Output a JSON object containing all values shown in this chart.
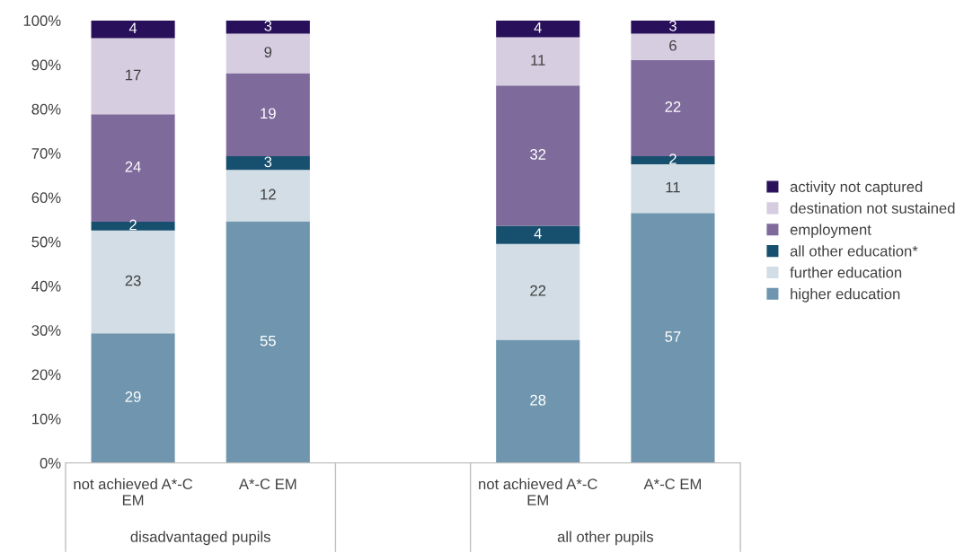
{
  "chart_data": {
    "type": "bar",
    "stacked": true,
    "categories": [
      "not achieved A*-C EM",
      "A*-C EM",
      null,
      "not achieved A*-C EM",
      "A*-C EM"
    ],
    "series": [
      {
        "name": "higher education",
        "color": "#6f96ae",
        "values": [
          29.3,
          54.6,
          null,
          27.8,
          56.5
        ],
        "value_labels": [
          "29",
          "55",
          null,
          "28",
          "57"
        ]
      },
      {
        "name": "further education",
        "color": "#d2dde5",
        "values": [
          23.2,
          11.6,
          null,
          21.7,
          11.0
        ],
        "value_labels": [
          "23",
          "12",
          null,
          "22",
          "11"
        ]
      },
      {
        "name": "all other education*",
        "color": "#17506f",
        "values": [
          2.0,
          3.1,
          null,
          4.1,
          1.8
        ],
        "value_labels": [
          "2",
          "3",
          null,
          "4",
          "2"
        ]
      },
      {
        "name": "employment",
        "color": "#7f6a9c",
        "values": [
          24.3,
          18.8,
          null,
          31.7,
          21.8
        ],
        "value_labels": [
          "24",
          "19",
          null,
          "32",
          "22"
        ]
      },
      {
        "name": "destination not sustained",
        "color": "#d6cde0",
        "values": [
          17.2,
          8.9,
          null,
          10.9,
          5.9
        ],
        "value_labels": [
          "17",
          "9",
          null,
          "11",
          "6"
        ]
      },
      {
        "name": "activity not captured",
        "color": "#28105a",
        "values": [
          4.0,
          3.0,
          null,
          3.8,
          3.0
        ],
        "value_labels": [
          "4",
          "3",
          null,
          "4",
          "3"
        ]
      }
    ],
    "ylim": [
      0,
      100
    ],
    "yticks": [
      {
        "value": 0,
        "label": "0%"
      },
      {
        "value": 10,
        "label": "10%"
      },
      {
        "value": 20,
        "label": "20%"
      },
      {
        "value": 30,
        "label": "30%"
      },
      {
        "value": 40,
        "label": "40%"
      },
      {
        "value": 50,
        "label": "50%"
      },
      {
        "value": 60,
        "label": "60%"
      },
      {
        "value": 70,
        "label": "70%"
      },
      {
        "value": 80,
        "label": "80%"
      },
      {
        "value": 90,
        "label": "90%"
      },
      {
        "value": 100,
        "label": "100%"
      }
    ],
    "annotations": [
      "disadvantaged pupils",
      "all other pupils"
    ],
    "grid": false,
    "legend": "right"
  }
}
